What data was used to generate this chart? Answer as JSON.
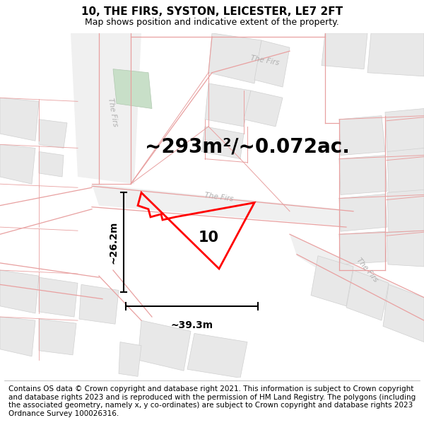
{
  "title": "10, THE FIRS, SYSTON, LEICESTER, LE7 2FT",
  "subtitle": "Map shows position and indicative extent of the property.",
  "area_text": "~293m²/~0.072ac.",
  "width_label": "~39.3m",
  "height_label": "~26.2m",
  "property_number": "10",
  "footer_text": "Contains OS data © Crown copyright and database right 2021. This information is subject to Crown copyright and database rights 2023 and is reproduced with the permission of HM Land Registry. The polygons (including the associated geometry, namely x, y co-ordinates) are subject to Crown copyright and database rights 2023 Ordnance Survey 100026316.",
  "bg_color": "#ffffff",
  "map_bg": "#f9f9f9",
  "title_fontsize": 11,
  "subtitle_fontsize": 9,
  "area_fontsize": 20,
  "label_fontsize": 10,
  "footer_fontsize": 7.5
}
